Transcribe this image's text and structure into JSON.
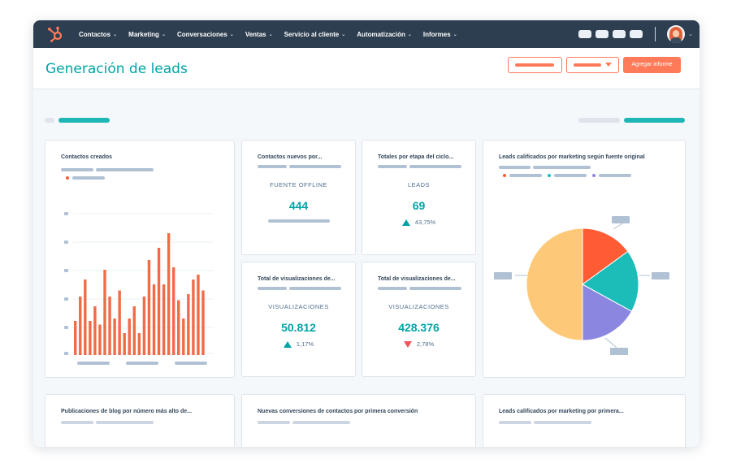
{
  "nav": {
    "items": [
      {
        "label": "Contactos"
      },
      {
        "label": "Marketing"
      },
      {
        "label": "Conversaciones"
      },
      {
        "label": "Ventas"
      },
      {
        "label": "Servicio al cliente"
      },
      {
        "label": "Automatización"
      },
      {
        "label": "Informes"
      }
    ],
    "caret": "⌄"
  },
  "header": {
    "title": "Generación de leads",
    "primary_button": "Agregar informe"
  },
  "cards": {
    "contactos_creados": {
      "title": "Contactos creados"
    },
    "contactos_nuevos": {
      "title": "Contactos nuevos por...",
      "label": "FUENTE OFFLINE",
      "value": "444"
    },
    "totales_etapa": {
      "title": "Totales por etapa del ciclo...",
      "label": "LEADS",
      "value": "69",
      "change": "43,75%",
      "trend": "up"
    },
    "visualizaciones_1": {
      "title": "Total de visualizaciones de...",
      "label": "VISUALIZACIONES",
      "value": "50.812",
      "change": "1,17%",
      "trend": "up"
    },
    "visualizaciones_2": {
      "title": "Total de visualizaciones de...",
      "label": "VISUALIZACIONES",
      "value": "428.376",
      "change": "2,78%",
      "trend": "down"
    },
    "leads_fuente": {
      "title": "Leads calificados por marketing según fuente original"
    },
    "blog": {
      "title": "Publicaciones de blog por número más alto de..."
    },
    "conversiones": {
      "title": "Nuevas conversiones de contactos por primera conversión"
    },
    "leads_primera": {
      "title": "Leads calificados por marketing por primera..."
    }
  },
  "colors": {
    "nav_bg": "#2d3e50",
    "accent_teal": "#00a4a6",
    "accent_orange": "#ff7a59",
    "bar_color": "#f26b47",
    "down_red": "#f2545b"
  },
  "icons": {
    "logo": "hubspot-sprocket-icon",
    "avatar": "user-avatar"
  },
  "chart_data": [
    {
      "type": "bar",
      "title": "Contactos creados",
      "values": [
        0.28,
        0.48,
        0.62,
        0.28,
        0.4,
        0.25,
        0.7,
        0.48,
        0.3,
        0.53,
        0.18,
        0.3,
        0.4,
        0.18,
        0.48,
        0.78,
        0.58,
        0.88,
        0.58,
        1.0,
        0.72,
        0.45,
        0.3,
        0.5,
        0.62,
        0.66,
        0.53
      ],
      "ylim": [
        0,
        1
      ],
      "grid": true,
      "note": "relative bar heights; no axis values printed"
    },
    {
      "type": "pie",
      "title": "Leads calificados por marketing según fuente original",
      "slices": [
        {
          "value": 0.15,
          "color": "#ff5c35"
        },
        {
          "value": 0.18,
          "color": "#1cbdb9"
        },
        {
          "value": 0.17,
          "color": "#8b86e0"
        },
        {
          "value": 0.5,
          "color": "#fdc978"
        }
      ],
      "legend_colors": [
        "#ff5c35",
        "#1cbdb9",
        "#8b86e0"
      ],
      "legend_placement": "top"
    }
  ]
}
